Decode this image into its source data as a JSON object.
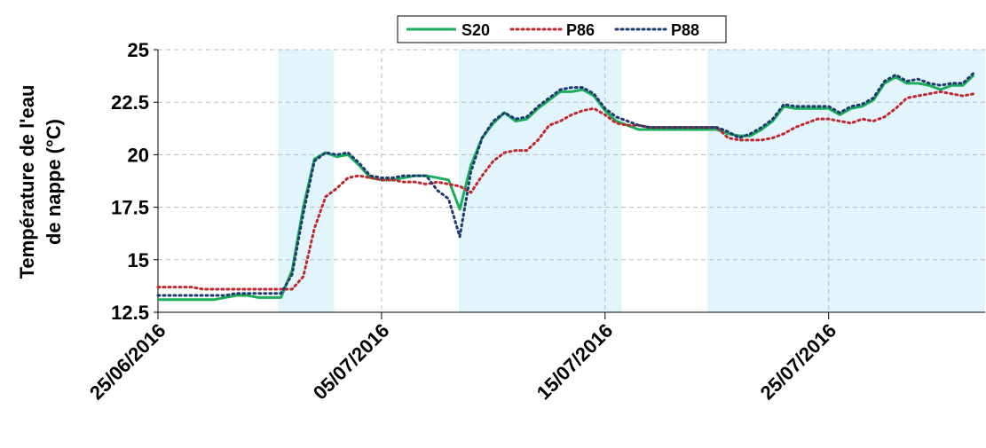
{
  "chart_data": {
    "type": "line",
    "ylabel": [
      "Température de l'eau",
      "de nappe (°C)"
    ],
    "x": [
      "2016-06-25T00:00",
      "2016-06-25T12:00",
      "2016-06-26T00:00",
      "2016-06-26T12:00",
      "2016-06-27T00:00",
      "2016-06-27T12:00",
      "2016-06-28T00:00",
      "2016-06-28T12:00",
      "2016-06-29T00:00",
      "2016-06-29T12:00",
      "2016-06-30T00:00",
      "2016-06-30T12:00",
      "2016-07-01T00:00",
      "2016-07-01T12:00",
      "2016-07-02T00:00",
      "2016-07-02T12:00",
      "2016-07-03T00:00",
      "2016-07-03T12:00",
      "2016-07-04T00:00",
      "2016-07-04T12:00",
      "2016-07-05T00:00",
      "2016-07-05T12:00",
      "2016-07-06T00:00",
      "2016-07-06T12:00",
      "2016-07-07T00:00",
      "2016-07-07T12:00",
      "2016-07-08T00:00",
      "2016-07-08T12:00",
      "2016-07-09T00:00",
      "2016-07-09T12:00",
      "2016-07-10T00:00",
      "2016-07-10T12:00",
      "2016-07-11T00:00",
      "2016-07-11T12:00",
      "2016-07-12T00:00",
      "2016-07-12T12:00",
      "2016-07-13T00:00",
      "2016-07-13T12:00",
      "2016-07-14T00:00",
      "2016-07-14T12:00",
      "2016-07-15T00:00",
      "2016-07-15T12:00",
      "2016-07-16T00:00",
      "2016-07-16T12:00",
      "2016-07-17T00:00",
      "2016-07-17T12:00",
      "2016-07-18T00:00",
      "2016-07-18T12:00",
      "2016-07-19T00:00",
      "2016-07-19T12:00",
      "2016-07-20T00:00",
      "2016-07-20T12:00",
      "2016-07-21T00:00",
      "2016-07-21T12:00",
      "2016-07-22T00:00",
      "2016-07-22T12:00",
      "2016-07-23T00:00",
      "2016-07-23T12:00",
      "2016-07-24T00:00",
      "2016-07-24T12:00",
      "2016-07-25T00:00",
      "2016-07-25T12:00",
      "2016-07-26T00:00",
      "2016-07-26T12:00",
      "2016-07-27T00:00",
      "2016-07-27T12:00",
      "2016-07-28T00:00",
      "2016-07-28T12:00",
      "2016-07-29T00:00",
      "2016-07-29T12:00",
      "2016-07-30T00:00",
      "2016-07-30T12:00",
      "2016-07-31T00:00",
      "2016-07-31T12:00"
    ],
    "series": [
      {
        "name": "S20",
        "color": "#1aae5a",
        "dash": "solid",
        "values": [
          13.1,
          13.1,
          13.1,
          13.1,
          13.1,
          13.1,
          13.2,
          13.3,
          13.3,
          13.2,
          13.2,
          13.2,
          14.5,
          17.5,
          19.8,
          20.1,
          19.9,
          20.0,
          19.5,
          18.9,
          18.8,
          18.8,
          18.9,
          19.0,
          19.0,
          18.9,
          18.8,
          17.4,
          19.5,
          20.8,
          21.5,
          22.0,
          21.6,
          21.7,
          22.2,
          22.6,
          23.0,
          23.0,
          23.1,
          22.8,
          22.1,
          21.6,
          21.4,
          21.2,
          21.2,
          21.2,
          21.2,
          21.2,
          21.2,
          21.2,
          21.2,
          21.0,
          20.9,
          20.9,
          21.2,
          21.6,
          22.3,
          22.2,
          22.2,
          22.2,
          22.2,
          21.9,
          22.2,
          22.3,
          22.6,
          23.4,
          23.7,
          23.4,
          23.4,
          23.3,
          23.1,
          23.3,
          23.3,
          23.8
        ]
      },
      {
        "name": "P86",
        "color": "#c0282d",
        "dash": "dotted",
        "values": [
          13.7,
          13.7,
          13.7,
          13.7,
          13.6,
          13.6,
          13.6,
          13.6,
          13.6,
          13.6,
          13.6,
          13.6,
          13.6,
          14.2,
          16.5,
          18.0,
          18.4,
          18.9,
          19.0,
          18.9,
          18.8,
          18.8,
          18.7,
          18.7,
          18.6,
          18.7,
          18.6,
          18.5,
          18.2,
          19.0,
          19.7,
          20.1,
          20.2,
          20.2,
          20.7,
          21.4,
          21.6,
          21.9,
          22.1,
          22.2,
          21.9,
          21.5,
          21.4,
          21.4,
          21.3,
          21.3,
          21.3,
          21.3,
          21.3,
          21.3,
          21.3,
          20.8,
          20.7,
          20.7,
          20.7,
          20.8,
          21.0,
          21.3,
          21.5,
          21.7,
          21.7,
          21.6,
          21.5,
          21.7,
          21.6,
          21.8,
          22.2,
          22.7,
          22.8,
          22.9,
          23.0,
          22.9,
          22.8,
          22.9
        ]
      },
      {
        "name": "P88",
        "color": "#1f3a6e",
        "dash": "dotted",
        "values": [
          13.3,
          13.3,
          13.3,
          13.3,
          13.3,
          13.3,
          13.3,
          13.4,
          13.4,
          13.4,
          13.4,
          13.4,
          14.3,
          17.2,
          19.7,
          20.1,
          20.0,
          20.1,
          19.6,
          19.0,
          18.9,
          18.9,
          19.0,
          19.0,
          19.0,
          18.3,
          17.9,
          16.1,
          19.2,
          20.8,
          21.6,
          22.0,
          21.7,
          21.8,
          22.3,
          22.7,
          23.1,
          23.2,
          23.2,
          22.9,
          22.2,
          21.8,
          21.6,
          21.4,
          21.3,
          21.3,
          21.3,
          21.3,
          21.3,
          21.3,
          21.3,
          21.1,
          20.8,
          21.0,
          21.3,
          21.7,
          22.4,
          22.3,
          22.3,
          22.3,
          22.3,
          22.0,
          22.3,
          22.4,
          22.7,
          23.5,
          23.8,
          23.5,
          23.6,
          23.4,
          23.3,
          23.4,
          23.4,
          23.9
        ]
      }
    ],
    "shaded_ranges": [
      [
        "2016-06-30T09:00",
        "2016-07-02T21:00"
      ],
      [
        "2016-07-08T11:00",
        "2016-07-15T18:00"
      ],
      [
        "2016-07-19T14:00",
        "2016-08-01T00:00"
      ]
    ],
    "shade_color": "#e2f4fc",
    "xlim": [
      "2016-06-25T00:00",
      "2016-08-01T00:00"
    ],
    "xticks": [
      {
        "value": "2016-06-25T00:00",
        "label": "25/06/2016"
      },
      {
        "value": "2016-07-05T00:00",
        "label": "05/07/2016"
      },
      {
        "value": "2016-07-15T00:00",
        "label": "15/07/2016"
      },
      {
        "value": "2016-07-25T00:00",
        "label": "25/07/2016"
      }
    ],
    "ylim": [
      12.5,
      25
    ],
    "yticks": [
      12.5,
      15,
      17.5,
      20,
      22.5,
      25
    ],
    "grid": true,
    "legend": "top"
  }
}
